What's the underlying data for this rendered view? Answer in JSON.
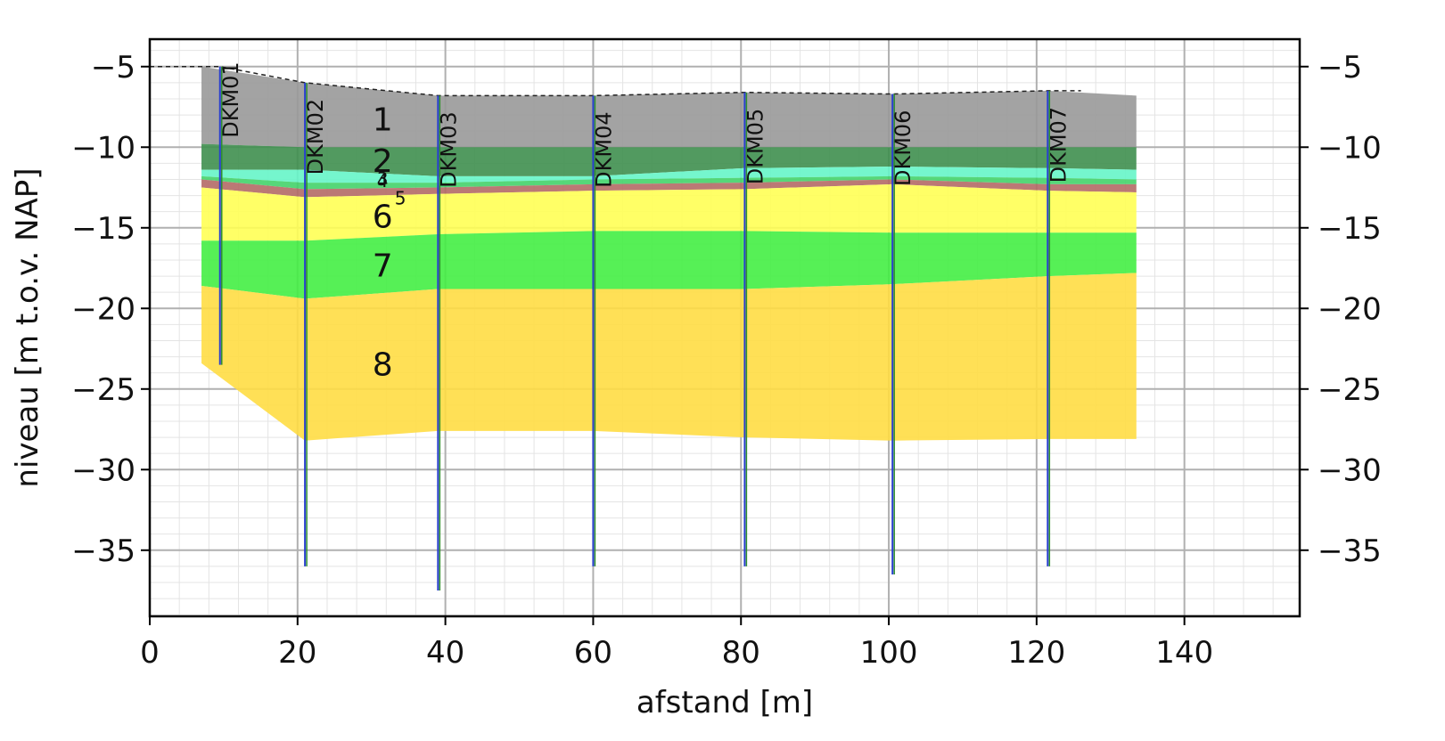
{
  "chart_data": {
    "type": "section",
    "xlabel": "afstand [m]",
    "ylabel": "niveau [m t.o.v. NAP]",
    "xlim": [
      0,
      155.6
    ],
    "ylim": [
      -39.1,
      -3.3
    ],
    "xticks": [
      0,
      20,
      40,
      60,
      80,
      100,
      120,
      140
    ],
    "yticks": [
      {
        "value": -5,
        "label": "−5"
      },
      {
        "value": -10,
        "label": "−10"
      },
      {
        "value": -15,
        "label": "−15"
      },
      {
        "value": -20,
        "label": "−20"
      },
      {
        "value": -25,
        "label": "−25"
      },
      {
        "value": -30,
        "label": "−30"
      },
      {
        "value": -35,
        "label": "−35"
      }
    ],
    "grid": true,
    "surface": {
      "x": [
        0,
        9.5,
        21,
        39,
        60,
        80.5,
        100.5,
        121.5,
        126
      ],
      "values": [
        -5,
        -5,
        -6,
        -6.8,
        -6.8,
        -6.6,
        -6.7,
        -6.5,
        -6.5
      ]
    },
    "layer_x": [
      7,
      21,
      39,
      60,
      80.5,
      100.5,
      121.5,
      133.5
    ],
    "layer_top": [
      -5,
      -6,
      -6.8,
      -6.8,
      -6.6,
      -6.7,
      -6.5,
      -6.8
    ],
    "layers": [
      {
        "name": "1",
        "color": "#999999",
        "bottom": [
          -9.8,
          -10,
          -10,
          -10,
          -10,
          -10,
          -10,
          -10
        ]
      },
      {
        "name": "2",
        "color": "#3f8f4f",
        "bottom": [
          -11.4,
          -11.4,
          -11.8,
          -11.8,
          -11.3,
          -11.2,
          -11.3,
          -11.4
        ]
      },
      {
        "name": "3",
        "color": "#66f5c8",
        "bottom": [
          -11.8,
          -12.2,
          -12.2,
          -12.0,
          -11.9,
          -11.8,
          -11.9,
          -12.0
        ]
      },
      {
        "name": "4",
        "color": "#44d36a",
        "bottom": [
          -12.0,
          -12.6,
          -12.5,
          -12.3,
          -12.2,
          -12.0,
          -12.3,
          -12.3
        ]
      },
      {
        "name": "5",
        "color": "#b46a66",
        "bottom": [
          -12.5,
          -13.1,
          -12.9,
          -12.7,
          -12.6,
          -12.3,
          -12.7,
          -12.8
        ]
      },
      {
        "name": "6",
        "color": "#ffff55",
        "bottom": [
          -15.8,
          -15.8,
          -15.4,
          -15.2,
          -15.2,
          -15.3,
          -15.3,
          -15.3
        ]
      },
      {
        "name": "7",
        "color": "#44ee44",
        "bottom": [
          -18.6,
          -19.4,
          -18.8,
          -18.8,
          -18.8,
          -18.5,
          -18.0,
          -17.8
        ]
      },
      {
        "name": "8",
        "color": "#ffdd44",
        "bottom": [
          -23.4,
          -28.2,
          -27.6,
          -27.6,
          -28.0,
          -28.2,
          -28.1,
          -28.1
        ]
      }
    ],
    "cpts": [
      {
        "name": "DKM01",
        "x": 9.5,
        "top": -5,
        "bottom": -23.5
      },
      {
        "name": "DKM02",
        "x": 21,
        "top": -6,
        "bottom": -36
      },
      {
        "name": "DKM03",
        "x": 39,
        "top": -6.8,
        "bottom": -37.5
      },
      {
        "name": "DKM04",
        "x": 60,
        "top": -6.8,
        "bottom": -36
      },
      {
        "name": "DKM05",
        "x": 80.5,
        "top": -6.6,
        "bottom": -36
      },
      {
        "name": "DKM06",
        "x": 100.5,
        "top": -6.7,
        "bottom": -36.5
      },
      {
        "name": "DKM07",
        "x": 121.5,
        "top": -6.5,
        "bottom": -36
      }
    ]
  }
}
